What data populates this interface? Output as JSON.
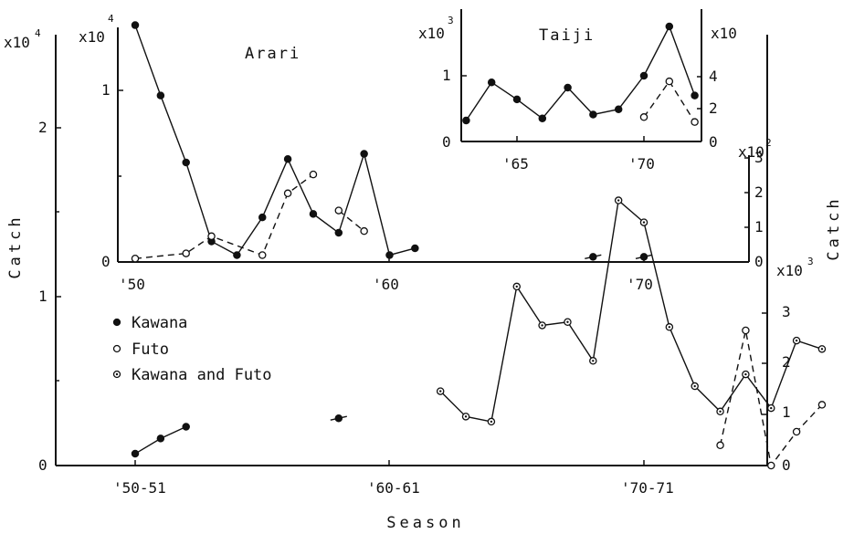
{
  "chart_data": [
    {
      "panel": "main",
      "type": "line",
      "xlabel": "Season",
      "ylabel_left": "Catch",
      "ylabel_right": "Catch",
      "left_scale_label": "x10",
      "left_scale_exp": "4",
      "right_scale_label": "x10",
      "right_scale_exp": "3",
      "xticks": [
        "'50-51",
        "'60-61",
        "'70-71"
      ],
      "yticks_left": [
        "0",
        "1",
        "2"
      ],
      "yticks_right": [
        "0",
        "1",
        "2",
        "3"
      ],
      "ylim_left": [
        0,
        2.5
      ],
      "ylim_right": [
        0,
        3.6
      ],
      "legend": [
        {
          "symbol": "●",
          "label": "Kawana"
        },
        {
          "symbol": "○",
          "label": "Futo"
        },
        {
          "symbol": "◎",
          "label": "Kawana and Futo"
        }
      ],
      "series": [
        {
          "marker": "filled",
          "segments": [
            [
              [
                1950,
                0.07
              ],
              [
                1951,
                0.16
              ],
              [
                1952,
                0.23
              ]
            ],
            [
              [
                1958,
                0.28
              ]
            ]
          ]
        },
        {
          "marker": "dotted",
          "segments": [
            [
              [
                1962,
                0.44
              ],
              [
                1963,
                0.29
              ],
              [
                1964,
                0.26
              ],
              [
                1965,
                1.06
              ],
              [
                1966,
                0.83
              ],
              [
                1967,
                0.85
              ],
              [
                1968,
                0.62
              ],
              [
                1969,
                1.57
              ],
              [
                1970,
                1.44
              ],
              [
                1971,
                0.82
              ],
              [
                1972,
                0.47
              ],
              [
                1973,
                0.32
              ],
              [
                1974,
                0.54
              ],
              [
                1975,
                0.34
              ],
              [
                1976,
                0.74
              ],
              [
                1977,
                0.69
              ]
            ]
          ]
        },
        {
          "marker": "open",
          "dashed": true,
          "segments": [
            [
              [
                1973,
                0.12
              ],
              [
                1974,
                0.8
              ],
              [
                1975,
                0
              ],
              [
                1976,
                0.2
              ],
              [
                1977,
                0.36
              ]
            ]
          ]
        }
      ]
    },
    {
      "panel": "Arari",
      "type": "line",
      "title": "Arari",
      "scale_label": "x10",
      "scale_exp": "4",
      "right_scale_label": "x10",
      "right_scale_exp": "2",
      "xticks": [
        "'50",
        "'60",
        "'70"
      ],
      "yticks_left": [
        "0",
        "1"
      ],
      "yticks_right": [
        "0",
        "1",
        "2",
        "3"
      ],
      "series": [
        {
          "marker": "filled",
          "segments": [
            [
              [
                1950,
                1.38
              ],
              [
                1951,
                0.97
              ],
              [
                1952,
                0.58
              ],
              [
                1953,
                0.12
              ],
              [
                1954,
                0.04
              ],
              [
                1955,
                0.26
              ],
              [
                1956,
                0.6
              ],
              [
                1957,
                0.28
              ],
              [
                1958,
                0.17
              ],
              [
                1959,
                0.63
              ],
              [
                1960,
                0.04
              ],
              [
                1961,
                0.08
              ]
            ],
            [
              [
                1968,
                0.03
              ]
            ],
            [
              [
                1970,
                0.03
              ]
            ]
          ]
        },
        {
          "marker": "open",
          "dashed": true,
          "segments": [
            [
              [
                1950,
                0.02
              ],
              [
                1952,
                0.05
              ],
              [
                1953,
                0.15
              ],
              [
                1955,
                0.04
              ],
              [
                1956,
                0.4
              ],
              [
                1957,
                0.51
              ]
            ],
            [
              [
                1958,
                0.3
              ],
              [
                1959,
                0.18
              ]
            ]
          ]
        }
      ]
    },
    {
      "panel": "Taiji",
      "type": "line",
      "title": "Taiji",
      "scale_label": "x10",
      "scale_exp": "3",
      "right_scale_label": "x10",
      "xticks": [
        "'65",
        "'70"
      ],
      "yticks_left": [
        "0",
        "1"
      ],
      "yticks_right": [
        "0",
        "2",
        "4"
      ],
      "series": [
        {
          "marker": "filled",
          "segments": [
            [
              [
                1963,
                0.32
              ],
              [
                1964,
                0.9
              ],
              [
                1965,
                0.64
              ],
              [
                1966,
                0.35
              ],
              [
                1967,
                0.82
              ],
              [
                1968,
                0.41
              ],
              [
                1969,
                0.49
              ],
              [
                1970,
                1.0
              ],
              [
                1971,
                1.75
              ],
              [
                1972,
                0.7
              ]
            ]
          ]
        },
        {
          "marker": "open",
          "dashed": true,
          "segments": [
            [
              [
                1970,
                1.5
              ],
              [
                1971,
                3.7
              ],
              [
                1972,
                1.2
              ]
            ]
          ]
        }
      ]
    }
  ]
}
